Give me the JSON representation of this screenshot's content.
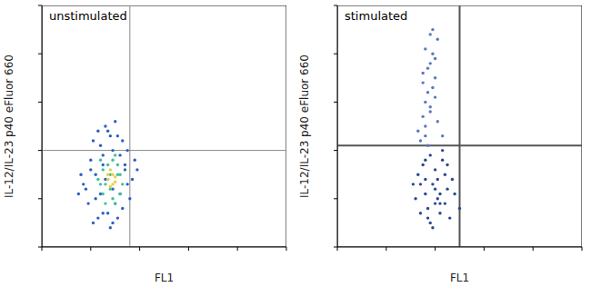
{
  "chart_data": [
    {
      "type": "scatter",
      "title": "unstimulated",
      "x_label": "FL1",
      "y_label": "IL-12/IL-23 p40 eFluor 660",
      "xlim": [
        0,
        100
      ],
      "ylim": [
        0,
        100
      ],
      "xticks": [
        0,
        20,
        40,
        60,
        80,
        100
      ],
      "yticks": [
        0,
        20,
        40,
        60,
        80,
        100
      ],
      "tick_labels": false,
      "quadrant": {
        "x": 36,
        "y": 40
      },
      "series": [
        {
          "color": "#2f5fc0",
          "x": [
            16,
            18,
            20,
            22,
            24,
            25,
            27,
            29,
            31,
            33,
            35,
            37,
            19,
            21,
            23,
            26,
            28,
            30,
            32,
            34,
            36,
            38,
            17,
            22,
            25,
            29,
            33,
            24,
            27,
            31,
            35,
            20,
            26,
            30,
            34,
            28,
            23,
            32,
            25,
            29,
            39,
            15,
            21
          ],
          "y": [
            30,
            24,
            36,
            20,
            42,
            14,
            48,
            10,
            46,
            16,
            40,
            28,
            18,
            44,
            12,
            50,
            8,
            52,
            22,
            34,
            20,
            36,
            26,
            30,
            38,
            40,
            44,
            22,
            14,
            12,
            26,
            32,
            28,
            18,
            32,
            46,
            48,
            38,
            34,
            24,
            32,
            22,
            10
          ]
        },
        {
          "color": "#3fc0a0",
          "x": [
            23,
            25,
            27,
            29,
            31,
            33,
            24,
            26,
            28,
            30,
            32,
            25,
            27,
            29,
            31,
            26,
            28,
            30,
            24,
            32
          ],
          "y": [
            28,
            22,
            34,
            20,
            30,
            26,
            36,
            18,
            24,
            38,
            22,
            32,
            28,
            36,
            34,
            26,
            30,
            18,
            26,
            30
          ]
        },
        {
          "color": "#e8d040",
          "x": [
            27,
            28,
            29,
            30,
            28,
            27,
            29,
            30
          ],
          "y": [
            28,
            25,
            30,
            27,
            32,
            30,
            26,
            29
          ]
        }
      ]
    },
    {
      "type": "scatter",
      "title": "stimulated",
      "x_label": "FL1",
      "y_label": "IL-12/IL-23 p40 eFluor 660",
      "xlim": [
        0,
        100
      ],
      "ylim": [
        0,
        100
      ],
      "xticks": [
        0,
        20,
        40,
        60,
        80,
        100
      ],
      "yticks": [
        0,
        20,
        40,
        60,
        80,
        100
      ],
      "tick_labels": false,
      "quadrant": {
        "x": 50,
        "y": 42
      },
      "series": [
        {
          "color": "#2a4a90",
          "x": [
            32,
            34,
            36,
            38,
            40,
            42,
            44,
            46,
            48,
            35,
            37,
            39,
            41,
            43,
            45,
            33,
            36,
            38,
            40,
            42,
            44,
            47,
            34,
            39,
            41,
            43,
            37,
            40,
            45,
            50,
            31,
            36,
            42
          ],
          "y": [
            20,
            14,
            28,
            10,
            24,
            18,
            30,
            12,
            22,
            34,
            16,
            26,
            20,
            36,
            24,
            30,
            22,
            38,
            32,
            14,
            18,
            28,
            26,
            8,
            28,
            40,
            12,
            18,
            34,
            16,
            26,
            36,
            22
          ]
        },
        {
          "color": "#5a78c0",
          "x": [
            34,
            36,
            38,
            40,
            35,
            37,
            39,
            41,
            36,
            38,
            40,
            35,
            37,
            39,
            33,
            36,
            38,
            41,
            37,
            39,
            36,
            40,
            38,
            43,
            35
          ],
          "y": [
            44,
            50,
            56,
            62,
            68,
            74,
            80,
            86,
            46,
            58,
            70,
            54,
            64,
            90,
            48,
            82,
            76,
            52,
            42,
            66,
            60,
            78,
            88,
            46,
            72
          ]
        }
      ]
    }
  ]
}
